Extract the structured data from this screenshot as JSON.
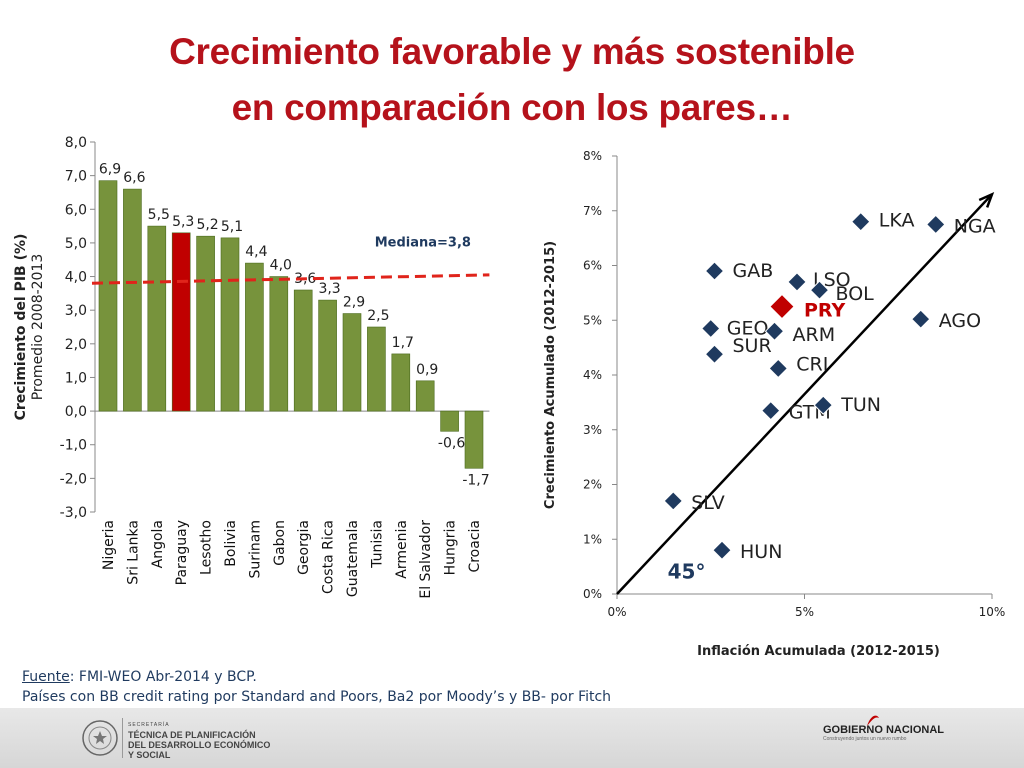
{
  "title": {
    "line1": "Crecimiento favorable y más sostenible",
    "line2": "en comparación con los pares…"
  },
  "chart_data": [
    {
      "type": "bar",
      "ylabel_line1": "Crecimiento del PIB (%)",
      "ylabel_line2": "Promedio 2008-2013",
      "ylim": [
        -3.0,
        8.0
      ],
      "yticks": [
        "8,0",
        "7,0",
        "6,0",
        "5,0",
        "4,0",
        "3,0",
        "2,0",
        "1,0",
        "0,0",
        "-1,0",
        "-2,0",
        "-3,0"
      ],
      "ytick_values": [
        8,
        7,
        6,
        5,
        4,
        3,
        2,
        1,
        0,
        -1,
        -2,
        -3
      ],
      "categories": [
        "Nigeria",
        "Sri Lanka",
        "Angola",
        "Paraguay",
        "Lesotho",
        "Bolivia",
        "Surinam",
        "Gabon",
        "Georgia",
        "Costa Rica",
        "Guatemala",
        "Tunisia",
        "Armenia",
        "El Salvador",
        "Hungria",
        "Croacia"
      ],
      "values": [
        6.85,
        6.6,
        5.5,
        5.3,
        5.2,
        5.15,
        4.4,
        4.0,
        3.6,
        3.3,
        2.9,
        2.5,
        1.7,
        0.9,
        -0.6,
        -1.7
      ],
      "data_labels": [
        "6,9",
        "6,6",
        "5,5",
        "5,3",
        "5,2",
        "5,1",
        "4,4",
        "4,0",
        "3,6",
        "3,3",
        "2,9",
        "2,5",
        "1,7",
        "0,9",
        "-0,6",
        "-1,7"
      ],
      "highlight": "Paraguay",
      "median": {
        "label": "Mediana=3,8",
        "start": 3.8,
        "end": 4.05
      },
      "colors": {
        "bar": "#77933c",
        "highlight": "#c00000",
        "median": "#e0241b",
        "median_label": "#1f3a5f"
      }
    },
    {
      "type": "scatter",
      "xlabel": "Inflación Acumulada (2012-2015)",
      "ylabel": "Crecimiento Acumulado (2012-2015)",
      "xlim": [
        0,
        10
      ],
      "ylim": [
        0,
        8
      ],
      "xticks": [
        "0%",
        "5%",
        "10%"
      ],
      "xtick_values": [
        0,
        5,
        10
      ],
      "yticks": [
        "0%",
        "1%",
        "2%",
        "3%",
        "4%",
        "5%",
        "6%",
        "7%",
        "8%"
      ],
      "ytick_values": [
        0,
        1,
        2,
        3,
        4,
        5,
        6,
        7,
        8
      ],
      "points": [
        {
          "label": "LKA",
          "x": 6.5,
          "y": 6.8
        },
        {
          "label": "NGA",
          "x": 8.5,
          "y": 6.75
        },
        {
          "label": "GAB",
          "x": 2.6,
          "y": 5.9
        },
        {
          "label": "LSO",
          "x": 4.8,
          "y": 5.7
        },
        {
          "label": "BOL",
          "x": 5.4,
          "y": 5.55
        },
        {
          "label": "PRY",
          "x": 4.4,
          "y": 5.25,
          "highlight": true
        },
        {
          "label": "GEO",
          "x": 2.5,
          "y": 4.85
        },
        {
          "label": "ARM",
          "x": 4.2,
          "y": 4.8
        },
        {
          "label": "AGO",
          "x": 8.1,
          "y": 5.02
        },
        {
          "label": "SUR",
          "x": 2.6,
          "y": 4.38
        },
        {
          "label": "CRI",
          "x": 4.3,
          "y": 4.12
        },
        {
          "label": "GTM",
          "x": 4.1,
          "y": 3.35
        },
        {
          "label": "TUN",
          "x": 5.5,
          "y": 3.45
        },
        {
          "label": "SLV",
          "x": 1.5,
          "y": 1.7
        },
        {
          "label": "HUN",
          "x": 2.8,
          "y": 0.8
        }
      ],
      "line": {
        "x0": 0,
        "y0": 0,
        "x1": 10.0,
        "y1": 7.3
      },
      "angle_label": "45°",
      "colors": {
        "point": "#1f3a5f",
        "highlight": "#c00000",
        "highlight_label": "#c00000",
        "angle_label": "#1f3a5f"
      }
    }
  ],
  "source": {
    "prefix": "Fuente",
    "text": ": FMI-WEO Abr-2014 y BCP.",
    "line2": "Países con BB credit rating por Standard and Poors, Ba2 por Moody’s y BB- por Fitch"
  },
  "footer": {
    "secretaria_small": "SECRETARÍA",
    "secretaria_l1": "TÉCNICA DE PLANIFICACIÓN",
    "secretaria_l2": "DEL DESARROLLO ECONÓMICO",
    "secretaria_l3": "Y SOCIAL",
    "gob_name": "GOBIERNO NACIONAL",
    "gob_sub": "Construyendo juntos un nuevo rumbo"
  }
}
